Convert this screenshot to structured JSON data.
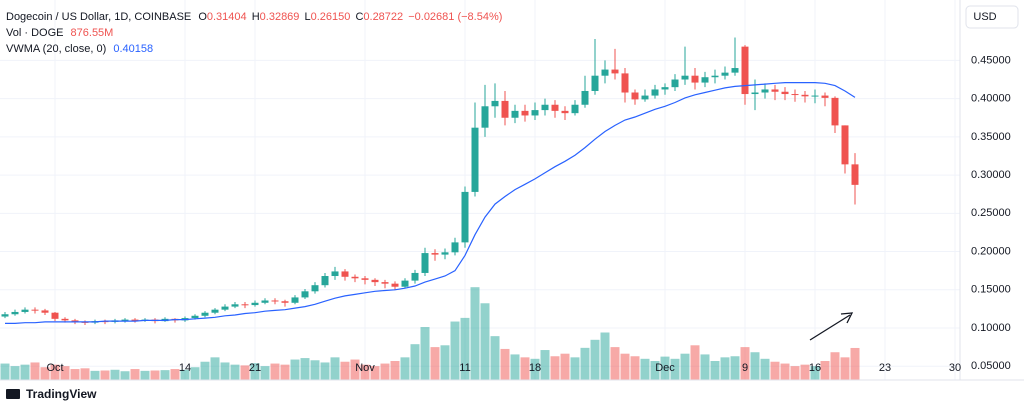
{
  "header": {
    "symbol": "Dogecoin / US Dollar, 1D, COINBASE",
    "o_label": "O",
    "o": "0.31404",
    "h_label": "H",
    "h": "0.32869",
    "l_label": "L",
    "l": "0.26150",
    "c_label": "C",
    "c": "0.28722",
    "change": "−0.02681 (−8.54%)",
    "vol_name": "Vol · DOGE",
    "vol_value": "876.55M",
    "vwma_name": "VWMA (20, close, 0)",
    "vwma_value": "0.40158",
    "currency": "USD",
    "brand": "TradingView"
  },
  "chart_data": {
    "type": "candlestick",
    "categories": [
      null,
      null,
      null,
      null,
      null,
      "Oct",
      null,
      null,
      null,
      null,
      null,
      null,
      null,
      null,
      null,
      null,
      null,
      null,
      "14",
      null,
      null,
      null,
      null,
      null,
      null,
      "21",
      null,
      null,
      null,
      null,
      null,
      null,
      null,
      null,
      null,
      null,
      "Nov",
      null,
      null,
      null,
      null,
      null,
      null,
      null,
      null,
      null,
      "11",
      null,
      null,
      null,
      null,
      null,
      null,
      "18",
      null,
      null,
      null,
      null,
      null,
      null,
      null,
      null,
      null,
      null,
      null,
      null,
      "Dec",
      null,
      null,
      null,
      null,
      null,
      null,
      null,
      "9",
      null,
      null,
      null,
      null,
      null,
      null,
      "16",
      null,
      null,
      null,
      null,
      null,
      null,
      "23",
      null,
      null,
      null,
      null,
      null,
      null,
      "30"
    ],
    "open": [
      0.115,
      0.118,
      0.121,
      0.124,
      0.123,
      0.12,
      0.112,
      0.11,
      0.108,
      0.107,
      0.109,
      0.108,
      0.11,
      0.111,
      0.11,
      0.111,
      0.109,
      0.112,
      0.11,
      0.113,
      0.116,
      0.12,
      0.124,
      0.128,
      0.131,
      0.13,
      0.133,
      0.136,
      0.135,
      0.133,
      0.14,
      0.148,
      0.156,
      0.168,
      0.174,
      0.167,
      0.165,
      0.163,
      0.16,
      0.158,
      0.154,
      0.162,
      0.172,
      0.198,
      0.196,
      0.199,
      0.212,
      0.278,
      0.362,
      0.39,
      0.397,
      0.375,
      0.384,
      0.378,
      0.385,
      0.392,
      0.384,
      0.381,
      0.392,
      0.41,
      0.43,
      0.438,
      0.433,
      0.408,
      0.399,
      0.404,
      0.412,
      0.415,
      0.425,
      0.43,
      0.421,
      0.428,
      0.43,
      0.434,
      0.468,
      0.406,
      0.408,
      0.412,
      0.409,
      0.406,
      0.405,
      0.403,
      0.404,
      0.401,
      0.365,
      0.31404,
      null,
      null,
      null,
      null,
      null,
      null,
      null,
      null,
      null,
      null
    ],
    "high": [
      0.121,
      0.124,
      0.127,
      0.127,
      0.125,
      0.121,
      0.114,
      0.112,
      0.11,
      0.111,
      0.111,
      0.112,
      0.113,
      0.113,
      0.113,
      0.113,
      0.114,
      0.113,
      0.115,
      0.118,
      0.122,
      0.126,
      0.131,
      0.134,
      0.134,
      0.136,
      0.139,
      0.139,
      0.137,
      0.143,
      0.151,
      0.16,
      0.172,
      0.18,
      0.177,
      0.17,
      0.168,
      0.165,
      0.163,
      0.161,
      0.165,
      0.176,
      0.205,
      0.203,
      0.204,
      0.218,
      0.285,
      0.395,
      0.418,
      0.42,
      0.41,
      0.392,
      0.392,
      0.395,
      0.4,
      0.398,
      0.39,
      0.398,
      0.43,
      0.478,
      0.45,
      0.465,
      0.44,
      0.412,
      0.412,
      0.418,
      0.42,
      0.432,
      0.468,
      0.44,
      0.435,
      0.438,
      0.442,
      0.48,
      0.47,
      0.425,
      0.42,
      0.418,
      0.415,
      0.412,
      0.41,
      0.412,
      0.408,
      0.403,
      0.365,
      0.32869,
      null,
      null,
      null,
      null,
      null,
      null,
      null,
      null,
      null,
      null
    ],
    "low": [
      0.113,
      0.116,
      0.119,
      0.119,
      0.117,
      0.109,
      0.107,
      0.105,
      0.104,
      0.105,
      0.105,
      0.106,
      0.107,
      0.107,
      0.108,
      0.106,
      0.108,
      0.107,
      0.108,
      0.111,
      0.114,
      0.118,
      0.122,
      0.126,
      0.126,
      0.128,
      0.131,
      0.131,
      0.128,
      0.131,
      0.138,
      0.145,
      0.153,
      0.163,
      0.162,
      0.16,
      0.157,
      0.155,
      0.152,
      0.15,
      0.152,
      0.158,
      0.168,
      0.188,
      0.19,
      0.195,
      0.205,
      0.272,
      0.35,
      0.375,
      0.365,
      0.368,
      0.37,
      0.372,
      0.378,
      0.375,
      0.372,
      0.378,
      0.388,
      0.405,
      0.42,
      0.425,
      0.395,
      0.392,
      0.396,
      0.4,
      0.405,
      0.41,
      0.418,
      0.412,
      0.415,
      0.42,
      0.425,
      0.43,
      0.392,
      0.385,
      0.4,
      0.398,
      0.398,
      0.396,
      0.395,
      0.394,
      0.39,
      0.355,
      0.302,
      0.2615,
      null,
      null,
      null,
      null,
      null,
      null,
      null,
      null,
      null,
      null
    ],
    "close": [
      0.118,
      0.121,
      0.124,
      0.123,
      0.12,
      0.112,
      0.11,
      0.108,
      0.107,
      0.109,
      0.108,
      0.11,
      0.111,
      0.11,
      0.111,
      0.109,
      0.112,
      0.11,
      0.113,
      0.116,
      0.12,
      0.124,
      0.128,
      0.131,
      0.13,
      0.133,
      0.136,
      0.135,
      0.133,
      0.14,
      0.148,
      0.156,
      0.168,
      0.174,
      0.167,
      0.165,
      0.163,
      0.16,
      0.158,
      0.154,
      0.162,
      0.172,
      0.198,
      0.196,
      0.199,
      0.212,
      0.278,
      0.362,
      0.39,
      0.397,
      0.375,
      0.384,
      0.378,
      0.385,
      0.392,
      0.384,
      0.381,
      0.392,
      0.41,
      0.43,
      0.438,
      0.433,
      0.408,
      0.399,
      0.404,
      0.412,
      0.415,
      0.425,
      0.43,
      0.421,
      0.428,
      0.43,
      0.434,
      0.44,
      0.406,
      0.408,
      0.412,
      0.409,
      0.406,
      0.405,
      0.403,
      0.404,
      0.401,
      0.365,
      0.31404,
      0.28722,
      null,
      null,
      null,
      null,
      null,
      null,
      null,
      null,
      null,
      null
    ],
    "volume": {
      "name": "Vol · DOGE",
      "values": [
        450,
        380,
        420,
        480,
        350,
        420,
        380,
        300,
        320,
        250,
        260,
        280,
        240,
        300,
        250,
        260,
        270,
        300,
        280,
        350,
        500,
        620,
        480,
        420,
        400,
        460,
        380,
        450,
        420,
        560,
        600,
        540,
        480,
        620,
        500,
        560,
        420,
        380,
        450,
        520,
        620,
        980,
        1450,
        900,
        950,
        1600,
        1700,
        2540,
        2100,
        1200,
        850,
        700,
        620,
        580,
        820,
        650,
        720,
        620,
        880,
        1100,
        1300,
        900,
        720,
        650,
        580,
        520,
        640,
        580,
        720,
        950,
        700,
        520,
        620,
        650,
        900,
        760,
        580,
        500,
        450,
        380,
        420,
        380,
        520,
        760,
        620,
        876.55,
        null,
        null,
        null,
        null,
        null,
        null,
        null,
        null,
        null,
        null
      ],
      "lim": [
        0,
        10400
      ]
    },
    "vwma": {
      "name": "VWMA (20, close, 0)",
      "color": "#2962ff",
      "values": [
        0.106,
        0.106,
        0.107,
        0.107,
        0.108,
        0.108,
        0.108,
        0.108,
        0.108,
        0.108,
        0.109,
        0.109,
        0.109,
        0.109,
        0.11,
        0.11,
        0.11,
        0.111,
        0.111,
        0.112,
        0.113,
        0.114,
        0.116,
        0.117,
        0.119,
        0.12,
        0.122,
        0.123,
        0.124,
        0.126,
        0.128,
        0.131,
        0.135,
        0.139,
        0.142,
        0.144,
        0.146,
        0.148,
        0.149,
        0.15,
        0.152,
        0.155,
        0.16,
        0.164,
        0.168,
        0.175,
        0.195,
        0.222,
        0.245,
        0.262,
        0.272,
        0.281,
        0.288,
        0.295,
        0.303,
        0.311,
        0.318,
        0.326,
        0.336,
        0.347,
        0.357,
        0.365,
        0.372,
        0.376,
        0.381,
        0.386,
        0.39,
        0.395,
        0.401,
        0.405,
        0.408,
        0.411,
        0.414,
        0.416,
        0.417,
        0.418,
        0.419,
        0.42,
        0.421,
        0.421,
        0.421,
        0.421,
        0.42,
        0.417,
        0.41,
        0.40158,
        null,
        null,
        null,
        null,
        null,
        null,
        null,
        null,
        null,
        null
      ]
    },
    "up_color": "#26a69a",
    "down_color": "#ef5350",
    "ylim": [
      0.032,
      0.529
    ],
    "yticks": [
      {
        "value": 0.05,
        "label": "0.05000"
      },
      {
        "value": 0.1,
        "label": "0.10000"
      },
      {
        "value": 0.15,
        "label": "0.15000"
      },
      {
        "value": 0.2,
        "label": "0.20000"
      },
      {
        "value": 0.25,
        "label": "0.25000"
      },
      {
        "value": 0.3,
        "label": "0.30000"
      },
      {
        "value": 0.35,
        "label": "0.35000"
      },
      {
        "value": 0.4,
        "label": "0.40000"
      },
      {
        "value": 0.45,
        "label": "0.45000"
      }
    ],
    "grid": true
  }
}
